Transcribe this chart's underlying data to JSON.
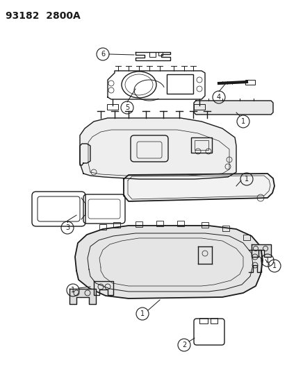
{
  "title": "93182  2800A",
  "bg_color": "#ffffff",
  "line_color": "#1a1a1a",
  "title_fontsize": 10,
  "fig_width": 4.14,
  "fig_height": 5.33,
  "dpi": 100
}
